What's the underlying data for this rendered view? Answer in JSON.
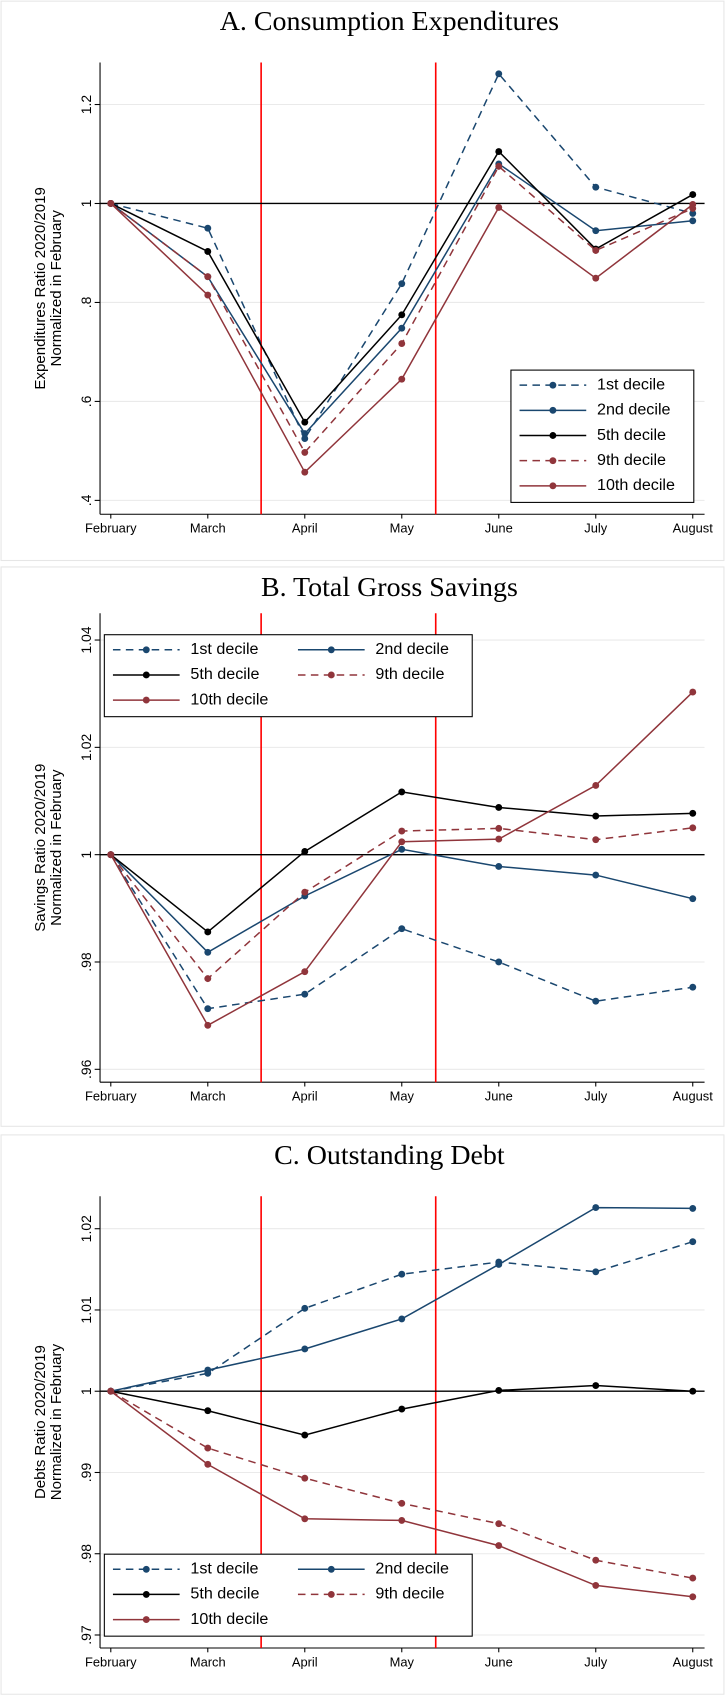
{
  "chart_data": [
    {
      "type": "line",
      "title": "A. Consumption Expenditures",
      "ylabel": [
        "Expenditures Ratio 2020/2019",
        "Normalized in February"
      ],
      "categories": [
        "February",
        "March",
        "April",
        "May",
        "June",
        "July",
        "August"
      ],
      "series": [
        {
          "name": "1st decile",
          "color": "#1a476f",
          "dashed": true,
          "values": [
            1,
            0.95,
            0.525,
            0.838,
            1.262,
            1.033,
            0.98
          ]
        },
        {
          "name": "2nd decile",
          "color": "#1a476f",
          "dashed": false,
          "values": [
            1,
            0.852,
            0.535,
            0.748,
            1.08,
            0.945,
            0.965
          ]
        },
        {
          "name": "5th decile",
          "color": "#000000",
          "dashed": false,
          "values": [
            1,
            0.903,
            0.558,
            0.775,
            1.105,
            0.908,
            1.018
          ]
        },
        {
          "name": "9th decile",
          "color": "#90353b",
          "dashed": true,
          "values": [
            1,
            0.852,
            0.497,
            0.717,
            1.075,
            0.905,
            0.99
          ]
        },
        {
          "name": "10th decile",
          "color": "#90353b",
          "dashed": false,
          "values": [
            1,
            0.815,
            0.457,
            0.645,
            0.992,
            0.849,
            0.998
          ]
        }
      ],
      "ylim": [
        0.372,
        1.285
      ],
      "yticks": [
        {
          "value": 0.4,
          "label": ".4"
        },
        {
          "value": 0.6,
          "label": ".6"
        },
        {
          "value": 0.8,
          "label": ".8"
        },
        1,
        1.2
      ],
      "grid": true,
      "hline": 1,
      "vlines": [
        1.55,
        3.35
      ],
      "legend": "lower right",
      "legend_columns": 1
    },
    {
      "type": "line",
      "title": "B. Total Gross Savings",
      "ylabel": [
        "Savings Ratio 2020/2019",
        "Normalized in February"
      ],
      "categories": [
        "February",
        "March",
        "April",
        "May",
        "June",
        "July",
        "August"
      ],
      "series": [
        {
          "name": "1st decile",
          "color": "#1a476f",
          "dashed": true,
          "values": [
            1,
            0.9713,
            0.974,
            0.9862,
            0.98,
            0.9727,
            0.9753
          ]
        },
        {
          "name": "2nd decile",
          "color": "#1a476f",
          "dashed": false,
          "values": [
            1,
            0.9818,
            0.9923,
            1.001,
            0.9978,
            0.9962,
            0.9918
          ]
        },
        {
          "name": "5th decile",
          "color": "#000000",
          "dashed": false,
          "values": [
            1,
            0.9856,
            1.0006,
            1.0117,
            1.0088,
            1.0072,
            1.0077
          ]
        },
        {
          "name": "9th decile",
          "color": "#90353b",
          "dashed": true,
          "values": [
            1,
            0.9769,
            0.993,
            1.0044,
            1.0049,
            1.0028,
            1.005
          ]
        },
        {
          "name": "10th decile",
          "color": "#90353b",
          "dashed": false,
          "values": [
            1,
            0.9682,
            0.9782,
            1.0024,
            1.0029,
            1.0129,
            1.0303
          ]
        }
      ],
      "ylim": [
        0.9576,
        1.045
      ],
      "yticks": [
        {
          "value": 0.96,
          "label": ".96"
        },
        {
          "value": 0.98,
          "label": ".98"
        },
        1,
        1.02,
        1.04
      ],
      "grid": true,
      "hline": 1,
      "vlines": [
        1.55,
        3.35
      ],
      "legend": "upper left",
      "legend_columns": 2
    },
    {
      "type": "line",
      "title": "C. Outstanding Debt",
      "ylabel": [
        "Debts Ratio 2020/2019",
        "Normalized in February"
      ],
      "categories": [
        "February",
        "March",
        "April",
        "May",
        "June",
        "July",
        "August"
      ],
      "series": [
        {
          "name": "1st decile",
          "color": "#1a476f",
          "dashed": true,
          "values": [
            1,
            1.0022,
            1.0102,
            1.0144,
            1.0159,
            1.0147,
            1.0184
          ]
        },
        {
          "name": "2nd decile",
          "color": "#1a476f",
          "dashed": false,
          "values": [
            1,
            1.0026,
            1.0052,
            1.0089,
            1.0156,
            1.0226,
            1.0225
          ]
        },
        {
          "name": "5th decile",
          "color": "#000000",
          "dashed": false,
          "values": [
            1,
            0.9976,
            0.9946,
            0.9978,
            1.0001,
            1.0007,
            1.0
          ]
        },
        {
          "name": "9th decile",
          "color": "#90353b",
          "dashed": true,
          "values": [
            1,
            0.993,
            0.9893,
            0.9862,
            0.9837,
            0.9792,
            0.977
          ]
        },
        {
          "name": "10th decile",
          "color": "#90353b",
          "dashed": false,
          "values": [
            1,
            0.991,
            0.9843,
            0.9841,
            0.981,
            0.9761,
            0.9747
          ]
        }
      ],
      "ylim": [
        0.9684,
        1.024
      ],
      "yticks": [
        {
          "value": 0.97,
          "label": ".97"
        },
        {
          "value": 0.98,
          "label": ".98"
        },
        {
          "value": 0.99,
          "label": ".99"
        },
        1,
        1.01,
        1.02
      ],
      "grid": true,
      "hline": 1,
      "vlines": [
        1.55,
        3.35
      ],
      "legend": "lower left",
      "legend_columns": 2
    }
  ]
}
